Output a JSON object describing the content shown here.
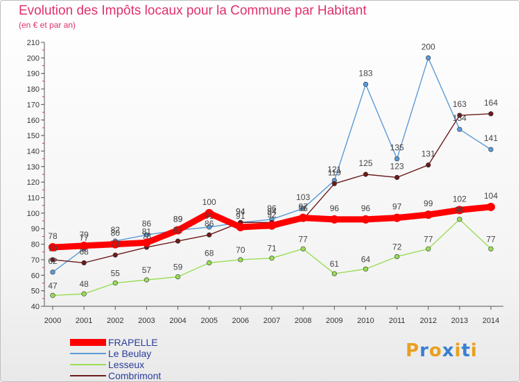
{
  "title": "Evolution des Impôts locaux pour la Commune par Habitant",
  "subtitle": "(en € et par an)",
  "chart_data": {
    "type": "line",
    "title": "Evolution des Impôts locaux pour la Commune par Habitant",
    "subtitle": "(en € et par an)",
    "xlabel": "",
    "ylabel": "",
    "x": [
      "2000",
      "2001",
      "2002",
      "2003",
      "2004",
      "2005",
      "2006",
      "2007",
      "2008",
      "2009",
      "2010",
      "2011",
      "2012",
      "2013",
      "2014"
    ],
    "ylim": [
      40,
      210
    ],
    "yticks": [
      40,
      50,
      60,
      70,
      80,
      90,
      100,
      110,
      120,
      130,
      140,
      150,
      160,
      170,
      180,
      190,
      200,
      210
    ],
    "grid": false,
    "legend_position": "bottom-left",
    "series": [
      {
        "name": "FRAPELLE",
        "color": "#ff0000",
        "values": [
          78,
          79,
          80,
          81,
          89,
          100,
          91,
          92,
          97,
          96,
          96,
          97,
          99,
          102,
          104
        ]
      },
      {
        "name": "Le Beulay",
        "color": "#5b9ad6",
        "values": [
          62,
          77,
          82,
          86,
          89,
          91,
          94,
          96,
          103,
          121,
          183,
          135,
          200,
          154,
          141
        ]
      },
      {
        "name": "Lesseux",
        "color": "#99dd55",
        "values": [
          47,
          48,
          55,
          57,
          59,
          68,
          70,
          71,
          77,
          61,
          64,
          72,
          77,
          96,
          77
        ]
      },
      {
        "name": "Combrimont",
        "color": "#6b1a1a",
        "values": [
          70,
          68,
          73,
          78,
          82,
          86,
          94,
          94,
          96,
          119,
          125,
          123,
          131,
          163,
          164
        ]
      }
    ]
  },
  "legend": {
    "items": [
      {
        "label": "FRAPELLE",
        "color": "#ff0000"
      },
      {
        "label": "Le Beulay",
        "color": "#5b9ad6"
      },
      {
        "label": "Lesseux",
        "color": "#99dd55"
      },
      {
        "label": "Combrimont",
        "color": "#6b1a1a"
      }
    ]
  },
  "logo": {
    "letters": [
      "P",
      "r",
      "o",
      "x",
      "i",
      "t",
      "i"
    ],
    "colors": [
      "#e8a020",
      "#3a7fd0",
      "#e8a020",
      "#3a7fd0",
      "#e8a020",
      "#3a7fd0",
      "#e8a020"
    ]
  }
}
